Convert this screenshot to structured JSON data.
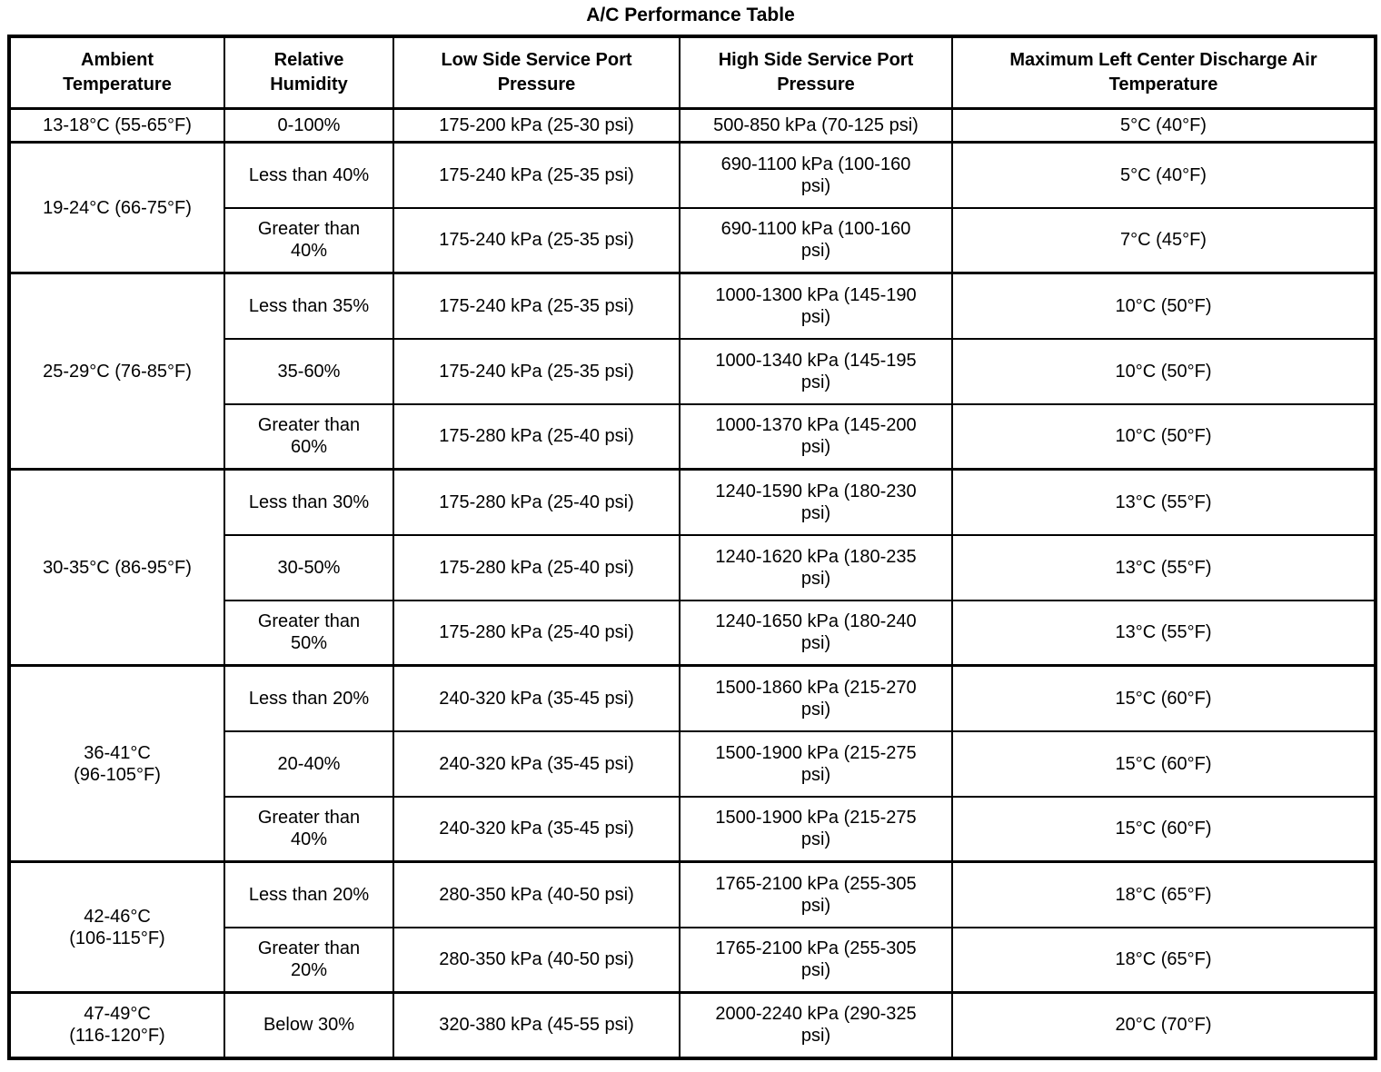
{
  "title": "A/C Performance Table",
  "table": {
    "headers": [
      "Ambient\nTemperature",
      "Relative\nHumidity",
      "Low Side Service Port\nPressure",
      "High Side Service Port\nPressure",
      "Maximum Left Center Discharge Air\nTemperature"
    ],
    "groups": [
      {
        "ambient": "13-18°C (55-65°F)",
        "rows": [
          [
            "0-100%",
            "175-200 kPa (25-30 psi)",
            "500-850 kPa (70-125 psi)",
            "5°C (40°F)"
          ]
        ]
      },
      {
        "ambient": "19-24°C (66-75°F)",
        "rows": [
          [
            "Less than 40%",
            "175-240 kPa (25-35 psi)",
            "690-1100 kPa (100-160\npsi)",
            "5°C (40°F)"
          ],
          [
            "Greater than\n40%",
            "175-240 kPa (25-35 psi)",
            "690-1100 kPa (100-160\npsi)",
            "7°C (45°F)"
          ]
        ]
      },
      {
        "ambient": "25-29°C (76-85°F)",
        "rows": [
          [
            "Less than 35%",
            "175-240 kPa (25-35 psi)",
            "1000-1300 kPa (145-190\npsi)",
            "10°C (50°F)"
          ],
          [
            "35-60%",
            "175-240 kPa (25-35 psi)",
            "1000-1340 kPa (145-195\npsi)",
            "10°C (50°F)"
          ],
          [
            "Greater than\n60%",
            "175-280 kPa (25-40 psi)",
            "1000-1370 kPa (145-200\npsi)",
            "10°C (50°F)"
          ]
        ]
      },
      {
        "ambient": "30-35°C (86-95°F)",
        "rows": [
          [
            "Less than 30%",
            "175-280 kPa (25-40 psi)",
            "1240-1590 kPa (180-230\npsi)",
            "13°C (55°F)"
          ],
          [
            "30-50%",
            "175-280 kPa (25-40 psi)",
            "1240-1620 kPa (180-235\npsi)",
            "13°C (55°F)"
          ],
          [
            "Greater than\n50%",
            "175-280 kPa (25-40 psi)",
            "1240-1650 kPa (180-240\npsi)",
            "13°C (55°F)"
          ]
        ]
      },
      {
        "ambient": "36-41°C\n(96-105°F)",
        "rows": [
          [
            "Less than 20%",
            "240-320 kPa (35-45 psi)",
            "1500-1860 kPa (215-270\npsi)",
            "15°C (60°F)"
          ],
          [
            "20-40%",
            "240-320 kPa (35-45 psi)",
            "1500-1900 kPa (215-275\npsi)",
            "15°C (60°F)"
          ],
          [
            "Greater than\n40%",
            "240-320 kPa (35-45 psi)",
            "1500-1900 kPa (215-275\npsi)",
            "15°C (60°F)"
          ]
        ]
      },
      {
        "ambient": "42-46°C\n(106-115°F)",
        "rows": [
          [
            "Less than 20%",
            "280-350 kPa (40-50 psi)",
            "1765-2100 kPa (255-305\npsi)",
            "18°C (65°F)"
          ],
          [
            "Greater than\n20%",
            "280-350 kPa (40-50 psi)",
            "1765-2100 kPa (255-305\npsi)",
            "18°C (65°F)"
          ]
        ]
      },
      {
        "ambient": "47-49°C\n(116-120°F)",
        "rows": [
          [
            "Below 30%",
            "320-380 kPa (45-55 psi)",
            "2000-2240 kPa (290-325\npsi)",
            "20°C (70°F)"
          ]
        ]
      }
    ]
  }
}
